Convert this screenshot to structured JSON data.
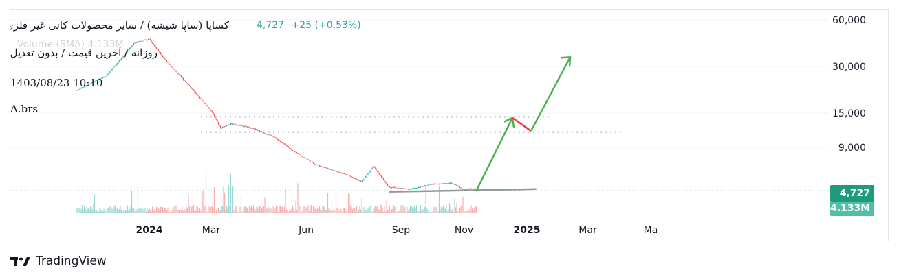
{
  "legend": {
    "symbol": "کساپا (ساپا شیشه) / سایر محصولات کانی غیر فلزی",
    "last_price": "4,727",
    "change": "+25 (+0.53%)",
    "interval": "روزانه / آخرین قیمت / بدون تعدیل",
    "datetime": "1403/08/23 10:10",
    "source": "A.brs",
    "volume_label": "Volume (SMA)",
    "volume_value": "4.133M"
  },
  "badges": {
    "price": "4,727",
    "volume": "4.133M"
  },
  "brand": {
    "name": "TradingView",
    "icon": "tradingview-logo-icon"
  },
  "colors": {
    "up": "#26a69a",
    "down": "#ef5350",
    "arrow_up": "#4caf50",
    "arrow_down": "#f23645",
    "support": "#9598a1",
    "price_badge": "#1e9b7a",
    "volume_badge": "#4fbfa8"
  },
  "chart_data": {
    "type": "candlestick",
    "price_scale": "log",
    "y_ticks": [
      60000,
      30000,
      15000,
      9000
    ],
    "y_tick_labels": [
      "60,000",
      "30,000",
      "15,000",
      "9,000"
    ],
    "x_tick_labels": [
      "2024",
      "Mar",
      "Jun",
      "Sep",
      "Nov",
      "2025",
      "Mar",
      "Ma"
    ],
    "last_price": 4727,
    "last_volume": "4.133M",
    "price_path": [
      [
        "2023-10-22",
        21000
      ],
      [
        "2023-11-20",
        26000
      ],
      [
        "2023-12-18",
        43000
      ],
      [
        "2024-01-01",
        45000
      ],
      [
        "2024-01-20",
        31000
      ],
      [
        "2024-02-10",
        22000
      ],
      [
        "2024-03-01",
        15500
      ],
      [
        "2024-03-10",
        12000
      ],
      [
        "2024-03-20",
        12800
      ],
      [
        "2024-04-10",
        12000
      ],
      [
        "2024-05-01",
        10500
      ],
      [
        "2024-05-20",
        8500
      ],
      [
        "2024-06-10",
        7000
      ],
      [
        "2024-07-10",
        6000
      ],
      [
        "2024-07-25",
        5400
      ],
      [
        "2024-08-05",
        6800
      ],
      [
        "2024-08-20",
        5000
      ],
      [
        "2024-09-10",
        4850
      ],
      [
        "2024-09-30",
        5200
      ],
      [
        "2024-10-20",
        5300
      ],
      [
        "2024-11-01",
        4800
      ],
      [
        "2024-11-10",
        4900
      ],
      [
        "2024-11-13",
        4727
      ]
    ],
    "levels": [
      {
        "name": "resistance-upper",
        "value": 14200,
        "style": "dotted"
      },
      {
        "name": "resistance-lower",
        "value": 11300,
        "style": "dotted"
      },
      {
        "name": "support",
        "value": 4750,
        "style": "solid"
      }
    ],
    "projection": [
      [
        "2024-11-13",
        4727
      ],
      [
        "2024-12-18",
        14000
      ],
      [
        "2025-01-05",
        11500
      ],
      [
        "2025-02-12",
        34500
      ]
    ]
  }
}
